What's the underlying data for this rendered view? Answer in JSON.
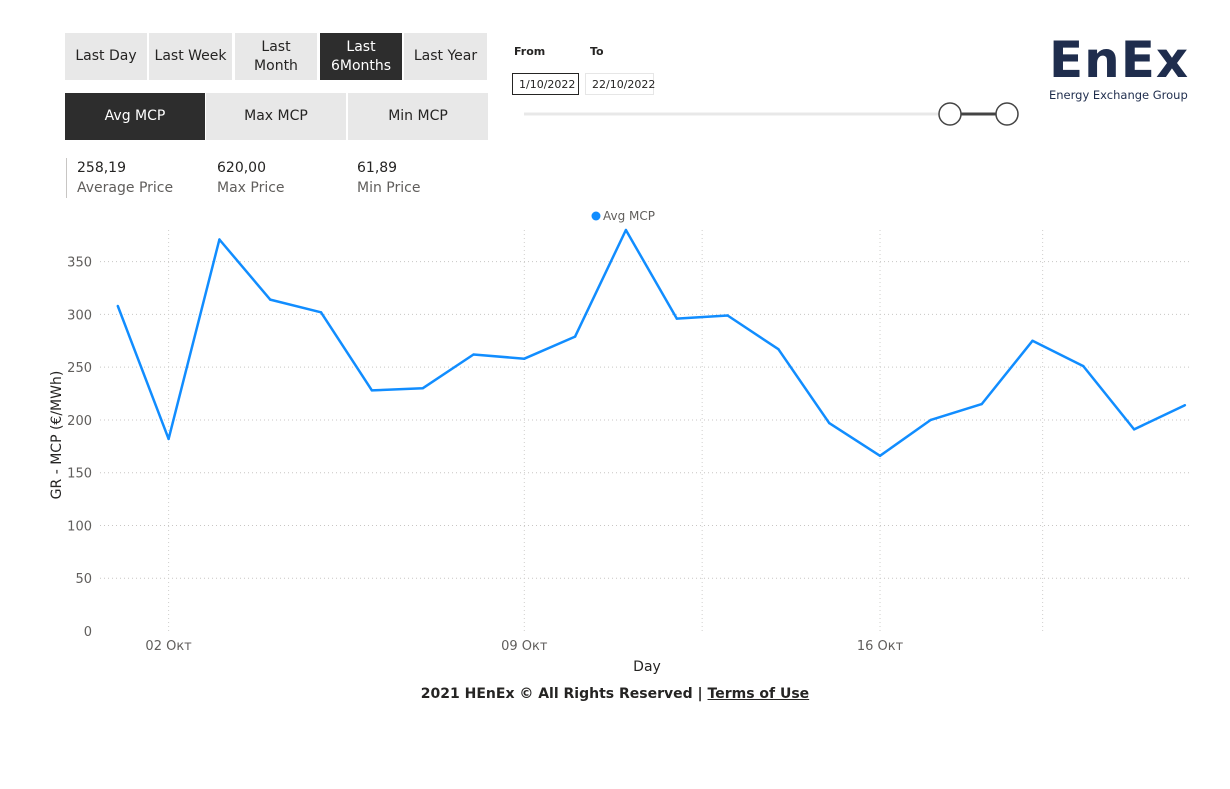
{
  "period_buttons": [
    {
      "label": "Last Day",
      "active": false
    },
    {
      "label": "Last Week",
      "active": false
    },
    {
      "label": "Last\nMonth",
      "active": false
    },
    {
      "label": "Last\n6Months",
      "active": true
    },
    {
      "label": "Last Year",
      "active": false
    }
  ],
  "metric_buttons": [
    {
      "label": "Avg MCP",
      "active": true
    },
    {
      "label": "Max MCP",
      "active": false
    },
    {
      "label": "Min MCP",
      "active": false
    }
  ],
  "date_filter": {
    "from_label": "From",
    "to_label": "To",
    "from_value": "1/10/2022",
    "to_value": "22/10/2022"
  },
  "logo": {
    "name": "EnEx",
    "tagline": "Energy Exchange Group",
    "color": "#1f2d4d"
  },
  "stats": [
    {
      "value": "258,19",
      "label": "Average Price"
    },
    {
      "value": "620,00",
      "label": "Max Price"
    },
    {
      "value": "61,89",
      "label": "Min Price"
    }
  ],
  "footer": {
    "text": "2021 HEnEx © All Rights Reserved | ",
    "link": "Terms of Use"
  },
  "chart_data": {
    "type": "line",
    "legend": "Avg MCP",
    "legend_position": "top-center",
    "xlabel": "Day",
    "ylabel": "GR - MCP (€/MWh)",
    "ylim": [
      0,
      380
    ],
    "yticks": [
      0,
      50,
      100,
      150,
      200,
      250,
      300,
      350
    ],
    "x_range": [
      0.65,
      22.1
    ],
    "xticks": [
      {
        "x": 2,
        "label": "02 Окт"
      },
      {
        "x": 9,
        "label": "09 Окт"
      },
      {
        "x": 16,
        "label": "16 Окт"
      }
    ],
    "line_color": "#118dff",
    "grid": true,
    "series": [
      {
        "name": "Avg MCP",
        "x": [
          1,
          2,
          3,
          4,
          5,
          6,
          7,
          8,
          9,
          10,
          11,
          12,
          13,
          14,
          15,
          16,
          17,
          18,
          19,
          20,
          21,
          22
        ],
        "values": [
          308,
          182,
          371,
          314,
          302,
          228,
          230,
          262,
          258,
          279,
          380,
          296,
          299,
          267,
          197,
          166,
          200,
          215,
          275,
          251,
          191,
          214
        ]
      }
    ]
  }
}
